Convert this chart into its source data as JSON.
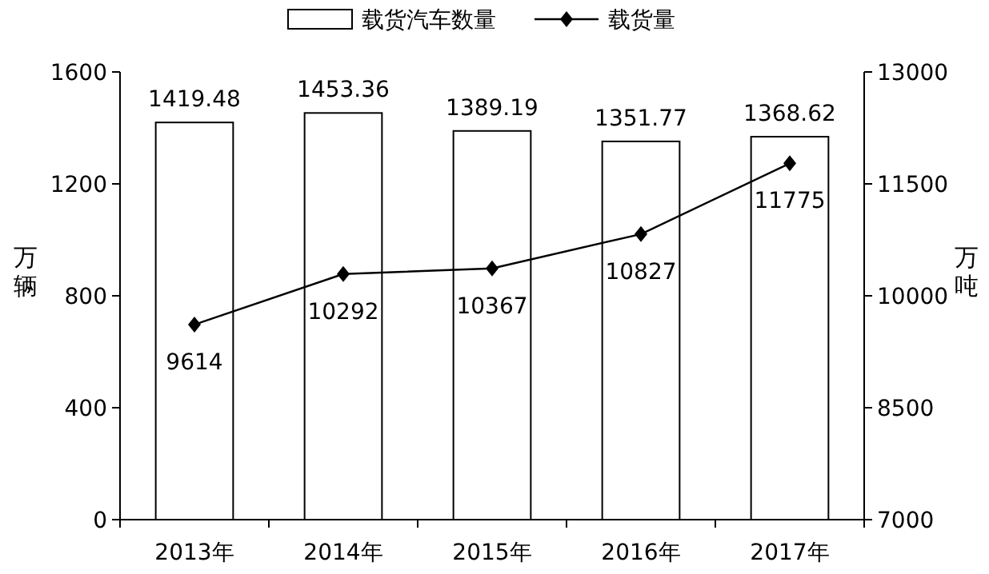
{
  "chart_data": {
    "type": "bar",
    "categories": [
      "2013年",
      "2014年",
      "2015年",
      "2016年",
      "2017年"
    ],
    "series": [
      {
        "name": "载货汽车数量",
        "color": "#ffffff",
        "values": [
          1419.48,
          1453.36,
          1389.19,
          1351.77,
          1368.62
        ]
      },
      {
        "name": "载货量",
        "type": "line",
        "axis": "y2",
        "color": "#000000",
        "values": [
          9614,
          10292,
          10367,
          10827,
          11775
        ]
      }
    ],
    "ylabel": "万辆",
    "y2label": "万吨",
    "ylim": [
      0,
      1600
    ],
    "yticks": [
      0,
      400,
      800,
      1200,
      1600
    ],
    "y2lim": [
      7000,
      13000
    ],
    "y2ticks": [
      7000,
      8500,
      10000,
      11500,
      13000
    ],
    "legend": "top",
    "marker": "diamond",
    "line_style": "solid",
    "data_labels": true
  }
}
